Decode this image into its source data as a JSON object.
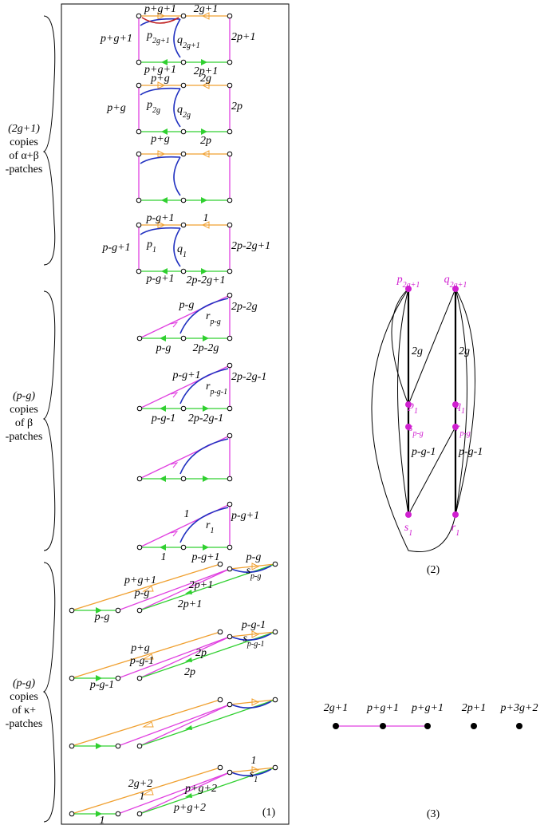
{
  "groups": [
    {
      "lines": [
        "(2g+1)",
        "copies",
        "of  α+β",
        "-patches"
      ]
    },
    {
      "lines": [
        "(p-g)",
        "copies",
        "of   β",
        "-patches"
      ]
    },
    {
      "lines": [
        "(p-g)",
        "copies",
        "of  κ+",
        "-patches"
      ]
    }
  ],
  "ab_patches": [
    {
      "labels": [
        "p+g+1",
        "2g+1",
        "p+g+1",
        "2p+1",
        "p+g+1",
        "2p+1"
      ],
      "p": {
        "base": "p",
        "sub": "2g+1"
      },
      "q": {
        "base": "q",
        "sub": "2g+1"
      }
    },
    {
      "labels": [
        "p+g",
        "2g",
        "p+g",
        "2p",
        "p+g",
        "2p"
      ],
      "p": {
        "base": "p",
        "sub": "2g"
      },
      "q": {
        "base": "q",
        "sub": "2g"
      }
    },
    {
      "labels": []
    },
    {
      "labels": [
        "p-g+1",
        "1",
        "p-g+1",
        "2p-2g+1",
        "p-g+1",
        "2p-2g+1"
      ],
      "p": {
        "base": "p",
        "sub": "1"
      },
      "q": {
        "base": "q",
        "sub": "1"
      }
    }
  ],
  "b_patches": [
    {
      "labels": [
        "p-g",
        "2p-2g",
        "p-g",
        "2p-2g"
      ],
      "r": {
        "base": "r",
        "sub": "p-g"
      }
    },
    {
      "labels": [
        "p-g+1",
        "2p-2g-1",
        "p-g-1",
        "2p-2g-1"
      ],
      "r": {
        "base": "r",
        "sub": "p-g-1"
      }
    },
    {
      "labels": []
    },
    {
      "labels": [
        "1",
        "p-g+1",
        "1",
        "p-g+1"
      ],
      "r": {
        "base": "r",
        "sub": "1"
      }
    }
  ],
  "k_patches": [
    {
      "labels": [
        "p-g",
        "p+g+1",
        "p-g",
        "2p+1",
        "2p+1",
        "p-g"
      ],
      "s": {
        "base": "s",
        "sub": "p-g"
      }
    },
    {
      "labels": [
        "p-g-1",
        "p+g",
        "p-g-1",
        "2p",
        "2p",
        "p-g-1"
      ],
      "s": {
        "base": "s",
        "sub": "p-g-1"
      }
    },
    {
      "labels": []
    },
    {
      "labels": [
        "1",
        "2g+2",
        "1",
        "p+g+2",
        "p+g+2",
        "1"
      ],
      "s": {
        "base": "s",
        "sub": "1"
      }
    }
  ],
  "graph2": {
    "nodes": [
      {
        "base": "p",
        "sub": "2g+1"
      },
      {
        "base": "q",
        "sub": "2g+1"
      },
      {
        "base": "p",
        "sub": "1"
      },
      {
        "base": "q",
        "sub": "1"
      },
      {
        "base": "s",
        "sub": "p-g"
      },
      {
        "base": "r",
        "sub": "p-g"
      },
      {
        "base": "s",
        "sub": "1"
      },
      {
        "base": "r",
        "sub": "1"
      }
    ],
    "edge_labels": [
      "2g",
      "2g",
      "p-g-1",
      "p-g-1"
    ]
  },
  "graph3": {
    "nodes": [
      "2g+1",
      "p+g+1",
      "p+g+1",
      "2p+1",
      "p+3g+2"
    ]
  },
  "panels": [
    "(1)",
    "(2)",
    "(3)"
  ]
}
